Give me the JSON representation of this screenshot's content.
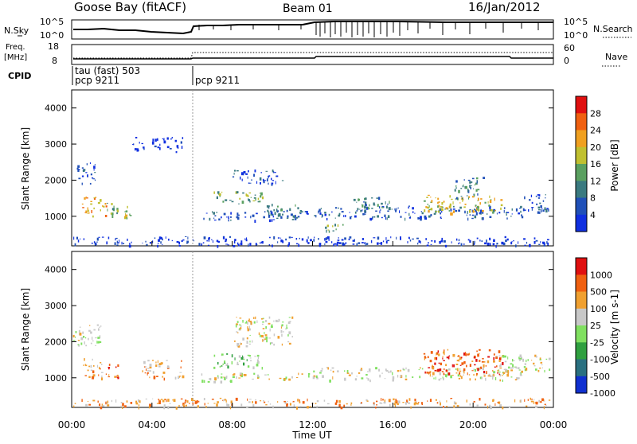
{
  "header": {
    "station": "Goose Bay (fitACF)",
    "beam": "Beam 01",
    "date": "16/Jan/2012"
  },
  "top_panels": {
    "nsky_label": "N.Sky",
    "nsky_ticks": [
      "10^5",
      "10^0"
    ],
    "nsearch_label": "N.Search",
    "nsearch_ticks": [
      "10^5",
      "10^0"
    ],
    "freq_label_1": "Freq.",
    "freq_label_2": "[MHz]",
    "freq_ticks": [
      "18",
      "8"
    ],
    "nave_label": "Nave",
    "nave_ticks": [
      "60",
      "0"
    ],
    "cpid_label": "CPID",
    "cpid_entries": [
      {
        "hour": 0,
        "line1": "tau (fast) 503",
        "line2": "pcp 9211"
      },
      {
        "hour": 6,
        "line1": "",
        "line2": "pcp 9211"
      }
    ]
  },
  "chart_data": [
    {
      "type": "heatmap",
      "name": "power",
      "ylabel": "Slant Range [km]",
      "yticks": [
        1000,
        2000,
        3000,
        4000
      ],
      "ylim": [
        180,
        4500
      ],
      "colorbar_label": "Power [dB]",
      "colorbar_ticks": [
        "4",
        "8",
        "12",
        "16",
        "20",
        "24",
        "28"
      ],
      "colorbar_colors": [
        "#1030e0",
        "#2050b8",
        "#3a7a80",
        "#5aa060",
        "#c0c030",
        "#f0a020",
        "#f06010",
        "#e01010"
      ],
      "regions": [
        {
          "t": [
            0.5,
            1.7
          ],
          "r": [
            1000,
            1550
          ],
          "level": 5
        },
        {
          "t": [
            1.7,
            2.3
          ],
          "r": [
            1000,
            1400
          ],
          "level": 3
        },
        {
          "t": [
            2.6,
            2.9
          ],
          "r": [
            900,
            1300
          ],
          "level": 4
        },
        {
          "t": [
            0.2,
            1.2
          ],
          "r": [
            1900,
            2500
          ],
          "level": 1
        },
        {
          "t": [
            3.0,
            3.6
          ],
          "r": [
            2800,
            3200
          ],
          "level": 0
        },
        {
          "t": [
            4.0,
            5.5
          ],
          "r": [
            2800,
            3200
          ],
          "level": 0
        },
        {
          "t": [
            6.3,
            11.8
          ],
          "r": [
            900,
            1150
          ],
          "level": 1
        },
        {
          "t": [
            7.0,
            9.5
          ],
          "r": [
            1350,
            1700
          ],
          "level": 3
        },
        {
          "t": [
            8.0,
            10.5
          ],
          "r": [
            1900,
            2300
          ],
          "level": 1
        },
        {
          "t": [
            9.5,
            11.5
          ],
          "r": [
            1000,
            1350
          ],
          "level": 2
        },
        {
          "t": [
            12.0,
            22.5
          ],
          "r": [
            950,
            1300
          ],
          "level": 1
        },
        {
          "t": [
            14.0,
            16.0
          ],
          "r": [
            1150,
            1550
          ],
          "level": 2
        },
        {
          "t": [
            17.5,
            21.5
          ],
          "r": [
            1100,
            1600
          ],
          "level": 4
        },
        {
          "t": [
            19.0,
            20.5
          ],
          "r": [
            1500,
            2100
          ],
          "level": 2
        },
        {
          "t": [
            22.5,
            23.8
          ],
          "r": [
            1100,
            1650
          ],
          "level": 1
        },
        {
          "t": [
            12.5,
            13.5
          ],
          "r": [
            600,
            800
          ],
          "level": 3
        },
        {
          "t": [
            0.0,
            23.8
          ],
          "r": [
            200,
            450
          ],
          "level": 0
        }
      ]
    },
    {
      "type": "heatmap",
      "name": "velocity",
      "ylabel": "Slant Range [km]",
      "yticks": [
        1000,
        2000,
        3000,
        4000
      ],
      "ylim": [
        180,
        4500
      ],
      "colorbar_label": "Velocity [m s-1]",
      "colorbar_ticks": [
        "1000",
        "500",
        "100",
        "25",
        "-25",
        "-100",
        "-500",
        "-1000"
      ],
      "colorbar_colors": [
        "#1030d0",
        "#2a7080",
        "#30a040",
        "#80e060",
        "#c8c8c8",
        "#f0a030",
        "#f06010",
        "#e01010"
      ],
      "regions": [
        {
          "t": [
            0.5,
            1.7
          ],
          "r": [
            1000,
            1550
          ],
          "level": 5
        },
        {
          "t": [
            1.7,
            2.3
          ],
          "r": [
            1000,
            1400
          ],
          "level": 6
        },
        {
          "t": [
            0.0,
            1.5
          ],
          "r": [
            1900,
            2500
          ],
          "level": 4
        },
        {
          "t": [
            3.5,
            5.5
          ],
          "r": [
            1000,
            1500
          ],
          "level": 5
        },
        {
          "t": [
            6.3,
            11.8
          ],
          "r": [
            900,
            1150
          ],
          "level": 4
        },
        {
          "t": [
            7.0,
            9.5
          ],
          "r": [
            1300,
            1700
          ],
          "level": 3
        },
        {
          "t": [
            8.0,
            11.0
          ],
          "r": [
            1900,
            2700
          ],
          "level": 4
        },
        {
          "t": [
            12.0,
            22.5
          ],
          "r": [
            950,
            1300
          ],
          "level": 4
        },
        {
          "t": [
            17.5,
            21.5
          ],
          "r": [
            1100,
            1800
          ],
          "level": 6
        },
        {
          "t": [
            21.0,
            23.8
          ],
          "r": [
            1200,
            1650
          ],
          "level": 4
        },
        {
          "t": [
            0.0,
            23.8
          ],
          "r": [
            200,
            450
          ],
          "level": 5
        }
      ]
    }
  ],
  "xaxis": {
    "ticks": [
      "00:00",
      "04:00",
      "08:00",
      "12:00",
      "16:00",
      "20:00",
      "00:00"
    ],
    "label": "Time UT"
  }
}
